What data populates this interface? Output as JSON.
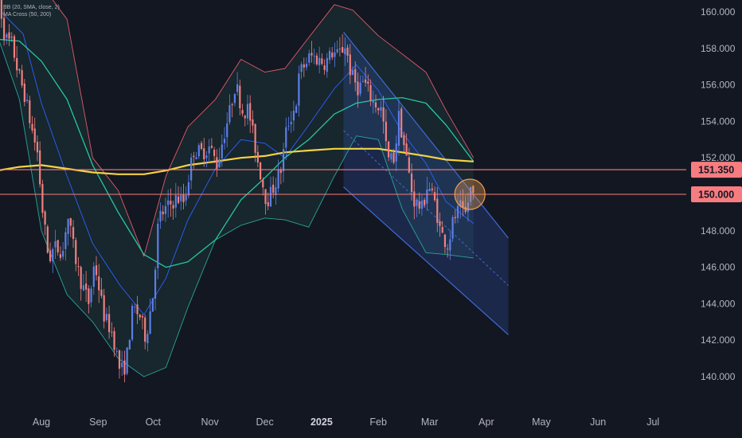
{
  "indicators": {
    "bb_label": "BB (20, SMA, close, 2)",
    "ma_label": "MA Cross (50, 200)"
  },
  "colors": {
    "background": "#131722",
    "up": "#5b7fe8",
    "down": "#f08080",
    "bb_basis": "#2962ff",
    "bb_upper": "#e05a6a",
    "bb_lower": "#26a69a",
    "ma50": "#26c6a0",
    "ma200": "#f5d442",
    "hline": "#f77c80",
    "channel": "#3d6bd6",
    "circle": "#f0a050"
  },
  "chart_data": {
    "type": "candlestick",
    "symbol_timeframe": "daily",
    "ylim": [
      139.0,
      161.0
    ],
    "x_axis_labels": [
      {
        "label": "Aug",
        "date": "2024-08-01"
      },
      {
        "label": "Sep",
        "date": "2024-09-01"
      },
      {
        "label": "Oct",
        "date": "2024-10-01"
      },
      {
        "label": "Nov",
        "date": "2024-11-01"
      },
      {
        "label": "Dec",
        "date": "2024-12-01"
      },
      {
        "label": "2025",
        "date": "2025-01-01"
      },
      {
        "label": "Feb",
        "date": "2025-02-01"
      },
      {
        "label": "Mar",
        "date": "2025-03-01"
      },
      {
        "label": "Apr",
        "date": "2025-04-01"
      },
      {
        "label": "May",
        "date": "2025-05-01"
      },
      {
        "label": "Jun",
        "date": "2025-06-01"
      },
      {
        "label": "Jul",
        "date": "2025-07-01"
      }
    ],
    "y_ticks": [
      "140.000",
      "142.000",
      "144.000",
      "146.000",
      "148.000",
      "150.000",
      "152.000",
      "154.000",
      "156.000",
      "158.000",
      "160.000"
    ],
    "price_path": [
      [
        "2024-07-08",
        161.2
      ],
      [
        "2024-07-10",
        160.0
      ],
      [
        "2024-07-12",
        158.6
      ],
      [
        "2024-07-16",
        158.2
      ],
      [
        "2024-07-19",
        156.8
      ],
      [
        "2024-07-23",
        155.4
      ],
      [
        "2024-07-26",
        153.9
      ],
      [
        "2024-07-30",
        152.2
      ],
      [
        "2024-08-01",
        149.6
      ],
      [
        "2024-08-05",
        146.4
      ],
      [
        "2024-08-08",
        147.1
      ],
      [
        "2024-08-13",
        146.9
      ],
      [
        "2024-08-15",
        149.0
      ],
      [
        "2024-08-19",
        146.8
      ],
      [
        "2024-08-22",
        145.4
      ],
      [
        "2024-08-27",
        144.0
      ],
      [
        "2024-08-30",
        146.3
      ],
      [
        "2024-09-04",
        143.4
      ],
      [
        "2024-09-09",
        142.3
      ],
      [
        "2024-09-13",
        140.3
      ],
      [
        "2024-09-16",
        140.6
      ],
      [
        "2024-09-20",
        143.8
      ],
      [
        "2024-09-24",
        143.3
      ],
      [
        "2024-09-27",
        142.1
      ],
      [
        "2024-10-01",
        144.6
      ],
      [
        "2024-10-04",
        148.7
      ],
      [
        "2024-10-09",
        149.3
      ],
      [
        "2024-10-14",
        149.8
      ],
      [
        "2024-10-18",
        149.6
      ],
      [
        "2024-10-23",
        152.4
      ],
      [
        "2024-10-28",
        152.3
      ],
      [
        "2024-11-01",
        152.6
      ],
      [
        "2024-11-05",
        151.6
      ],
      [
        "2024-11-08",
        153.0
      ],
      [
        "2024-11-12",
        154.6
      ],
      [
        "2024-11-15",
        156.1
      ],
      [
        "2024-11-19",
        154.5
      ],
      [
        "2024-11-22",
        154.7
      ],
      [
        "2024-11-27",
        151.9
      ],
      [
        "2024-12-02",
        149.6
      ],
      [
        "2024-12-05",
        150.2
      ],
      [
        "2024-12-10",
        151.4
      ],
      [
        "2024-12-13",
        153.7
      ],
      [
        "2024-12-18",
        154.9
      ],
      [
        "2024-12-20",
        156.7
      ],
      [
        "2024-12-26",
        157.6
      ],
      [
        "2025-01-03",
        157.2
      ],
      [
        "2025-01-07",
        157.8
      ],
      [
        "2025-01-10",
        157.6
      ],
      [
        "2025-01-14",
        158.2
      ],
      [
        "2025-01-17",
        156.6
      ],
      [
        "2025-01-21",
        155.8
      ],
      [
        "2025-01-24",
        156.2
      ],
      [
        "2025-01-29",
        155.1
      ],
      [
        "2025-02-03",
        154.6
      ],
      [
        "2025-02-06",
        151.9
      ],
      [
        "2025-02-10",
        152.0
      ],
      [
        "2025-02-12",
        154.4
      ],
      [
        "2025-02-17",
        151.6
      ],
      [
        "2025-02-20",
        149.7
      ],
      [
        "2025-02-25",
        149.2
      ],
      [
        "2025-02-28",
        150.6
      ],
      [
        "2025-03-04",
        149.5
      ],
      [
        "2025-03-07",
        147.9
      ],
      [
        "2025-03-11",
        147.2
      ],
      [
        "2025-03-14",
        148.6
      ],
      [
        "2025-03-18",
        149.3
      ],
      [
        "2025-03-20",
        148.6
      ],
      [
        "2025-03-24",
        150.6
      ],
      [
        "2025-03-25",
        149.9
      ]
    ],
    "bb_basis": [
      [
        "2024-07-10",
        160.0
      ],
      [
        "2024-07-22",
        158.8
      ],
      [
        "2024-08-01",
        155.0
      ],
      [
        "2024-08-15",
        151.0
      ],
      [
        "2024-08-29",
        147.3
      ],
      [
        "2024-09-13",
        145.0
      ],
      [
        "2024-09-26",
        143.4
      ],
      [
        "2024-10-08",
        145.4
      ],
      [
        "2024-10-20",
        148.6
      ],
      [
        "2024-11-04",
        151.4
      ],
      [
        "2024-11-18",
        153.0
      ],
      [
        "2024-12-01",
        152.8
      ],
      [
        "2024-12-12",
        152.0
      ],
      [
        "2024-12-25",
        153.8
      ],
      [
        "2025-01-08",
        155.8
      ],
      [
        "2025-01-20",
        157.1
      ],
      [
        "2025-02-01",
        155.7
      ],
      [
        "2025-02-14",
        153.4
      ],
      [
        "2025-02-27",
        151.7
      ],
      [
        "2025-03-10",
        149.6
      ],
      [
        "2025-03-25",
        148.4
      ]
    ],
    "bb_upper": [
      [
        "2024-07-08",
        161.6
      ],
      [
        "2024-07-20",
        162.0
      ],
      [
        "2024-08-01",
        161.5
      ],
      [
        "2024-08-15",
        159.6
      ],
      [
        "2024-08-29",
        152.0
      ],
      [
        "2024-09-12",
        150.2
      ],
      [
        "2024-09-26",
        146.6
      ],
      [
        "2024-10-08",
        151.0
      ],
      [
        "2024-10-20",
        153.7
      ],
      [
        "2024-11-04",
        155.2
      ],
      [
        "2024-11-18",
        157.4
      ],
      [
        "2024-12-01",
        156.7
      ],
      [
        "2024-12-12",
        156.9
      ],
      [
        "2024-12-25",
        158.6
      ],
      [
        "2025-01-08",
        160.4
      ],
      [
        "2025-01-18",
        160.1
      ],
      [
        "2025-02-01",
        158.7
      ],
      [
        "2025-02-14",
        157.7
      ],
      [
        "2025-02-27",
        156.7
      ],
      [
        "2025-03-10",
        154.6
      ],
      [
        "2025-03-25",
        152.0
      ]
    ],
    "bb_lower": [
      [
        "2024-07-08",
        158.7
      ],
      [
        "2024-07-20",
        155.2
      ],
      [
        "2024-08-01",
        148.0
      ],
      [
        "2024-08-15",
        144.5
      ],
      [
        "2024-08-29",
        143.0
      ],
      [
        "2024-09-12",
        141.0
      ],
      [
        "2024-09-26",
        140.0
      ],
      [
        "2024-10-08",
        140.5
      ],
      [
        "2024-10-20",
        143.8
      ],
      [
        "2024-11-04",
        147.5
      ],
      [
        "2024-11-18",
        148.3
      ],
      [
        "2024-12-01",
        148.7
      ],
      [
        "2024-12-12",
        148.6
      ],
      [
        "2024-12-25",
        148.2
      ],
      [
        "2025-01-08",
        151.0
      ],
      [
        "2025-01-20",
        153.2
      ],
      [
        "2025-02-01",
        153.0
      ],
      [
        "2025-02-14",
        149.2
      ],
      [
        "2025-02-27",
        146.8
      ],
      [
        "2025-03-10",
        146.7
      ],
      [
        "2025-03-25",
        146.5
      ]
    ],
    "ma50": [
      [
        "2024-07-08",
        158.5
      ],
      [
        "2024-07-20",
        158.4
      ],
      [
        "2024-08-01",
        157.3
      ],
      [
        "2024-08-15",
        155.2
      ],
      [
        "2024-08-29",
        151.6
      ],
      [
        "2024-09-12",
        149.0
      ],
      [
        "2024-09-26",
        146.7
      ],
      [
        "2024-10-08",
        146.0
      ],
      [
        "2024-10-20",
        146.3
      ],
      [
        "2024-11-04",
        147.5
      ],
      [
        "2024-11-18",
        149.7
      ],
      [
        "2024-12-01",
        150.9
      ],
      [
        "2024-12-12",
        152.0
      ],
      [
        "2024-12-25",
        153.0
      ],
      [
        "2025-01-08",
        154.4
      ],
      [
        "2025-01-20",
        155.0
      ],
      [
        "2025-02-01",
        155.2
      ],
      [
        "2025-02-14",
        155.3
      ],
      [
        "2025-02-27",
        155.0
      ],
      [
        "2025-03-10",
        153.8
      ],
      [
        "2025-03-25",
        151.8
      ]
    ],
    "ma200": [
      [
        "2024-07-08",
        151.3
      ],
      [
        "2024-07-20",
        151.5
      ],
      [
        "2024-08-01",
        151.6
      ],
      [
        "2024-08-15",
        151.4
      ],
      [
        "2024-08-29",
        151.2
      ],
      [
        "2024-09-12",
        151.1
      ],
      [
        "2024-09-26",
        151.1
      ],
      [
        "2024-10-08",
        151.3
      ],
      [
        "2024-10-20",
        151.6
      ],
      [
        "2024-11-04",
        151.8
      ],
      [
        "2024-11-18",
        152.0
      ],
      [
        "2024-12-01",
        152.1
      ],
      [
        "2024-12-12",
        152.3
      ],
      [
        "2024-12-25",
        152.4
      ],
      [
        "2025-01-08",
        152.5
      ],
      [
        "2025-01-20",
        152.5
      ],
      [
        "2025-02-01",
        152.5
      ],
      [
        "2025-02-14",
        152.3
      ],
      [
        "2025-02-27",
        152.1
      ],
      [
        "2025-03-10",
        151.9
      ],
      [
        "2025-03-25",
        151.8
      ]
    ],
    "horizontal_levels": [
      {
        "value": 151.35,
        "label": "151.350"
      },
      {
        "value": 150.0,
        "label": "150.000"
      }
    ],
    "regression_channel": {
      "start": "2025-01-13",
      "end": "2025-04-13",
      "upper": [
        158.9,
        147.6
      ],
      "middle": [
        153.5,
        145.0
      ],
      "lower": [
        150.4,
        142.3
      ]
    },
    "highlight_circle": {
      "date": "2025-03-23",
      "price": 150.0
    }
  }
}
